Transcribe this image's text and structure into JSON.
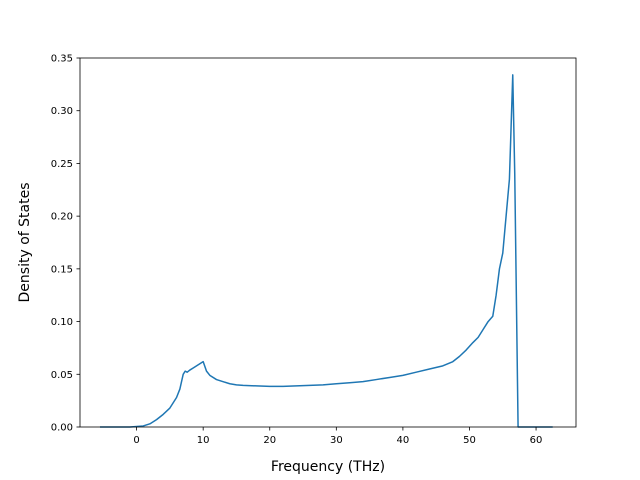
{
  "chart_data": {
    "type": "line",
    "title": "",
    "xlabel": "Frequency (THz)",
    "ylabel": "Density of States",
    "xlim": [
      -8.5,
      66
    ],
    "ylim": [
      0,
      0.35
    ],
    "xticks": [
      0,
      10,
      20,
      30,
      40,
      50,
      60
    ],
    "xtick_labels": [
      "0",
      "10",
      "20",
      "30",
      "40",
      "50",
      "60"
    ],
    "yticks": [
      0.0,
      0.05,
      0.1,
      0.15,
      0.2,
      0.25,
      0.3,
      0.35
    ],
    "ytick_labels": [
      "0.00",
      "0.05",
      "0.10",
      "0.15",
      "0.20",
      "0.25",
      "0.30",
      "0.35"
    ],
    "grid": false,
    "series": [
      {
        "color": "#1f77b4",
        "x": [
          -5.5,
          -3,
          -1,
          0,
          1,
          2,
          3,
          4,
          5,
          6,
          6.5,
          7,
          7.3,
          7.6,
          8,
          8.5,
          9,
          9.5,
          10,
          10.5,
          11,
          12,
          13,
          14,
          15,
          16,
          18,
          20,
          22,
          24,
          26,
          28,
          30,
          32,
          34,
          36,
          38,
          40,
          42,
          44,
          46,
          47.5,
          48.5,
          49.5,
          50.5,
          51.3,
          52,
          52.8,
          53.5,
          54,
          54.5,
          55,
          55.5,
          56,
          56.5,
          56.8,
          57.3,
          57.5,
          60,
          62.5
        ],
        "y": [
          0.0,
          0.0,
          0.0,
          0.0005,
          0.001,
          0.003,
          0.007,
          0.012,
          0.018,
          0.028,
          0.036,
          0.05,
          0.053,
          0.052,
          0.054,
          0.056,
          0.058,
          0.06,
          0.062,
          0.053,
          0.049,
          0.045,
          0.043,
          0.041,
          0.04,
          0.0395,
          0.039,
          0.0385,
          0.0385,
          0.039,
          0.0395,
          0.04,
          0.041,
          0.042,
          0.043,
          0.045,
          0.047,
          0.049,
          0.052,
          0.055,
          0.058,
          0.062,
          0.067,
          0.073,
          0.08,
          0.085,
          0.092,
          0.1,
          0.105,
          0.125,
          0.15,
          0.165,
          0.2,
          0.235,
          0.334,
          0.24,
          0.0,
          0.0,
          0.0,
          0.0
        ]
      }
    ]
  }
}
